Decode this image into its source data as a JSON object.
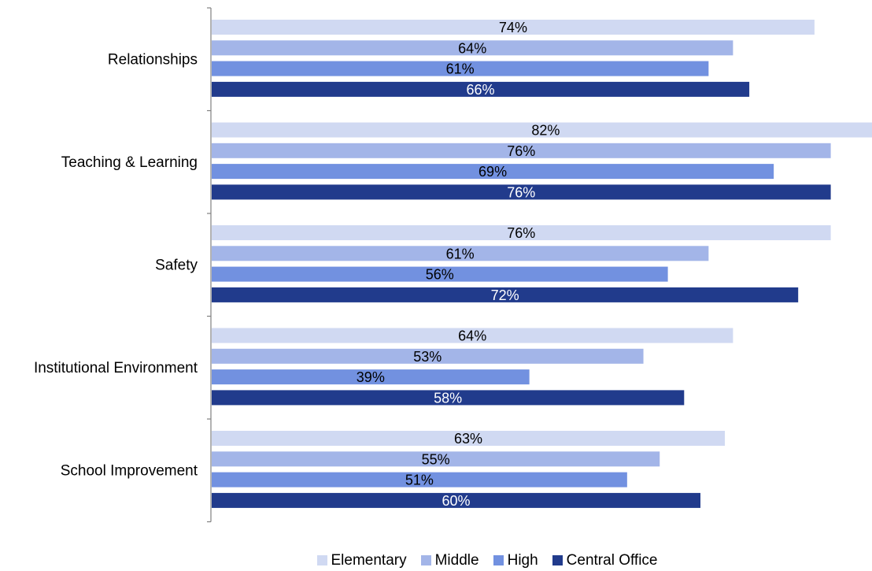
{
  "chart_data": {
    "type": "bar",
    "orientation": "horizontal",
    "categories": [
      "Relationships",
      "Teaching & Learning",
      "Safety",
      "Institutional Environment",
      "School Improvement"
    ],
    "series": [
      {
        "name": "Elementary",
        "values": [
          74,
          82,
          76,
          64,
          63
        ],
        "labels": [
          "74%",
          "82%",
          "76%",
          "64%",
          "63%"
        ],
        "color": "#d0d9f2",
        "label_color": "#000000"
      },
      {
        "name": "Middle",
        "values": [
          64,
          76,
          61,
          53,
          55
        ],
        "labels": [
          "64%",
          "76%",
          "61%",
          "53%",
          "55%"
        ],
        "color": "#a3b5e8",
        "label_color": "#000000"
      },
      {
        "name": "High",
        "values": [
          61,
          69,
          56,
          39,
          51
        ],
        "labels": [
          "61%",
          "69%",
          "56%",
          "39%",
          "51%"
        ],
        "color": "#7291e0",
        "label_color": "#000000"
      },
      {
        "name": "Central Office",
        "values": [
          66,
          76,
          72,
          58,
          60
        ],
        "labels": [
          "66%",
          "76%",
          "72%",
          "58%",
          "60%"
        ],
        "color": "#213b8c",
        "label_color": "#ffffff"
      }
    ],
    "xlim": [
      0,
      80
    ],
    "value_format": "percent",
    "grid": false,
    "legend_position": "bottom",
    "title": "",
    "xlabel": "",
    "ylabel": ""
  }
}
